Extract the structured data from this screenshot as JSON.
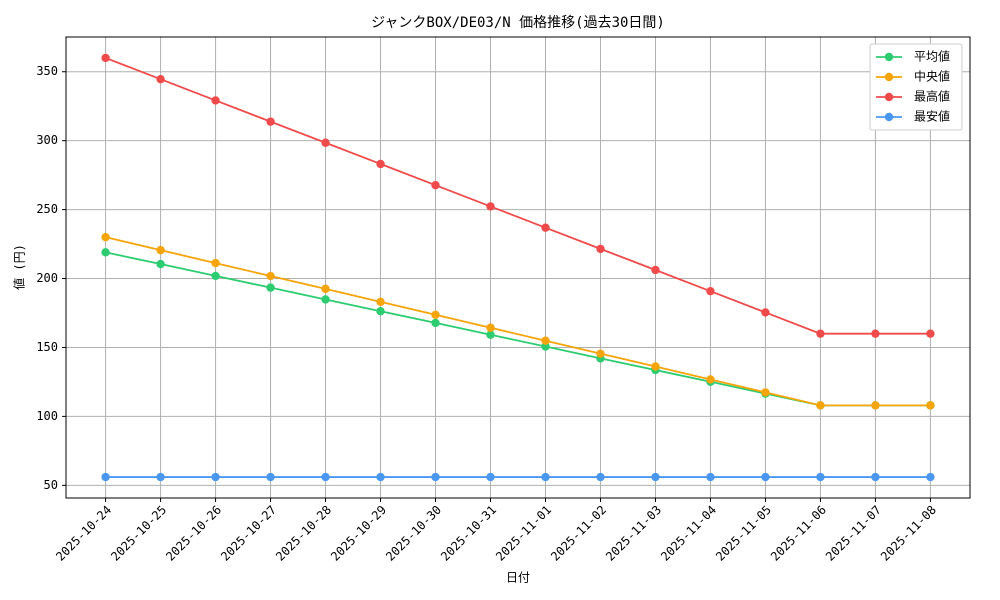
{
  "chart_data": {
    "type": "line",
    "title": "ジャンクBOX/DE03/N 価格推移(過去30日間)",
    "x_label": "日付",
    "y_label": "値 (円)",
    "categories": [
      "2025-10-24",
      "2025-10-25",
      "2025-10-26",
      "2025-10-27",
      "2025-10-28",
      "2025-10-29",
      "2025-10-30",
      "2025-10-31",
      "2025-11-01",
      "2025-11-02",
      "2025-11-03",
      "2025-11-04",
      "2025-11-05",
      "2025-11-06",
      "2025-11-07",
      "2025-11-08"
    ],
    "series": [
      {
        "name": "平均値",
        "color": "#2ecc71",
        "values": [
          219,
          210.5,
          201.9,
          193.4,
          184.8,
          176.3,
          167.8,
          159.2,
          150.7,
          142.1,
          133.6,
          125.1,
          116.5,
          108,
          108,
          108
        ]
      },
      {
        "name": "中央値",
        "color": "#f5a40a",
        "values": [
          230,
          220.6,
          211.2,
          201.8,
          192.5,
          183.1,
          173.7,
          164.3,
          154.9,
          145.5,
          136.2,
          126.8,
          117.4,
          108,
          108,
          108
        ]
      },
      {
        "name": "最高値",
        "color": "#ef4b4b",
        "values": [
          360,
          344.6,
          329.2,
          313.8,
          298.5,
          283.1,
          267.7,
          252.3,
          236.9,
          221.5,
          206.2,
          190.8,
          175.4,
          160,
          160,
          160
        ]
      },
      {
        "name": "最安値",
        "color": "#4a97f0",
        "values": [
          56,
          56,
          56,
          56,
          56,
          56,
          56,
          56,
          56,
          56,
          56,
          56,
          56,
          56,
          56,
          56
        ]
      }
    ],
    "ylim": [
      40.8,
      375.2
    ],
    "yticks": [
      50,
      100,
      150,
      200,
      250,
      300,
      350
    ],
    "grid": true,
    "legend": "upper right"
  }
}
